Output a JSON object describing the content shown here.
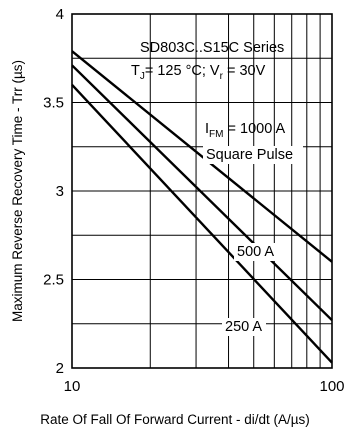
{
  "chart_data": {
    "type": "line",
    "title_line1": "SD803C..S15C Series",
    "title_line2": "TJ= 125 °C; Vr = 30V",
    "xlabel": "Rate Of Fall Of Forward Current - di/dt (A/µs)",
    "ylabel": "Maximum Reverse Recovery Time - Trr (µs)",
    "x_scale": "log",
    "xlim": [
      10,
      100
    ],
    "ylim": [
      2,
      4
    ],
    "grid": true,
    "x_tick_labels": [
      "10",
      "100"
    ],
    "y_tick_labels": [
      "2",
      "2.5",
      "3",
      "3.5",
      "4"
    ],
    "y_ticks": [
      2,
      2.5,
      3,
      3.5,
      4
    ],
    "annotations": {
      "ifm": "IFM = 1000 A",
      "pulse": "Square Pulse"
    },
    "series": [
      {
        "name": "1000 A",
        "x": [
          10,
          100
        ],
        "y": [
          3.79,
          2.6
        ]
      },
      {
        "name": "500 A",
        "x": [
          10,
          100
        ],
        "y": [
          3.71,
          2.27
        ]
      },
      {
        "name": "250 A",
        "x": [
          10,
          100
        ],
        "y": [
          3.6,
          2.03
        ]
      }
    ]
  }
}
